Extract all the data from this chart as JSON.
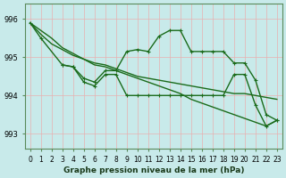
{
  "background_color": "#c8eaea",
  "grid_color": "#e8b0b0",
  "line_color": "#1a6b1a",
  "title": "Graphe pression niveau de la mer (hPa)",
  "xlabel": "Graphe pression niveau de la mer (hPa)",
  "ylim": [
    992.6,
    996.4
  ],
  "xlim": [
    -0.5,
    23.5
  ],
  "yticks": [
    993,
    994,
    995,
    996
  ],
  "xtick_labels": [
    "0",
    "1",
    "2",
    "3",
    "4",
    "5",
    "6",
    "7",
    "8",
    "9",
    "10",
    "11",
    "12",
    "13",
    "14",
    "15",
    "16",
    "17",
    "18",
    "19",
    "20",
    "21",
    "22",
    "23"
  ],
  "line1": [
    995.9,
    995.7,
    995.5,
    995.25,
    995.1,
    994.95,
    994.8,
    994.75,
    994.65,
    994.55,
    994.45,
    994.35,
    994.25,
    994.15,
    994.05,
    993.9,
    993.8,
    993.7,
    993.6,
    993.5,
    993.4,
    993.3,
    993.2,
    993.35
  ],
  "line2": [
    995.9,
    995.6,
    995.35,
    995.2,
    995.05,
    994.95,
    994.85,
    994.8,
    994.7,
    994.6,
    994.5,
    994.45,
    994.4,
    994.35,
    994.3,
    994.25,
    994.2,
    994.15,
    994.1,
    994.05,
    994.05,
    994.0,
    993.95,
    993.9
  ],
  "line3_x": [
    0,
    1,
    3,
    4,
    5,
    6,
    7,
    8,
    9,
    10,
    11,
    12,
    13,
    14,
    15,
    16,
    17,
    18,
    19,
    20,
    21,
    22,
    23
  ],
  "line3": [
    995.9,
    995.5,
    994.8,
    994.75,
    994.45,
    994.35,
    994.65,
    994.65,
    995.15,
    995.2,
    995.15,
    995.55,
    995.7,
    995.7,
    995.15,
    995.15,
    995.15,
    995.15,
    994.85,
    994.85,
    994.4,
    993.5,
    993.35
  ],
  "line4_x": [
    3,
    4,
    5,
    6,
    7,
    8,
    9,
    10,
    11,
    12,
    13,
    14,
    15,
    16,
    17,
    18,
    19,
    20,
    21,
    22,
    23
  ],
  "line4": [
    994.8,
    994.75,
    994.35,
    994.25,
    994.55,
    994.55,
    994.0,
    994.0,
    994.0,
    994.0,
    994.0,
    994.0,
    994.0,
    994.0,
    994.0,
    994.0,
    994.55,
    994.55,
    993.75,
    993.2,
    993.35
  ]
}
